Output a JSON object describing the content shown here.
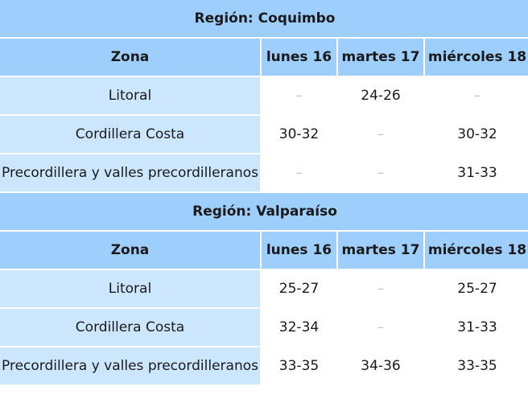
{
  "headers": {
    "zona": "Zona",
    "day1": "lunes 16",
    "day2": "martes 17",
    "day3": "miércoles 18"
  },
  "regions": [
    {
      "title": "Región: Coquimbo",
      "rows": [
        {
          "zona": "Litoral",
          "day1": "–",
          "day2": "24-26",
          "day3": "–"
        },
        {
          "zona": "Cordillera Costa",
          "day1": "30-32",
          "day2": "–",
          "day3": "30-32"
        },
        {
          "zona": "Precordillera y valles precordilleranos",
          "day1": "–",
          "day2": "–",
          "day3": "31-33"
        }
      ]
    },
    {
      "title": "Región: Valparaíso",
      "rows": [
        {
          "zona": "Litoral",
          "day1": "25-27",
          "day2": "–",
          "day3": "25-27"
        },
        {
          "zona": "Cordillera Costa",
          "day1": "32-34",
          "day2": "–",
          "day3": "31-33"
        },
        {
          "zona": "Precordillera y valles precordilleranos",
          "day1": "33-35",
          "day2": "34-36",
          "day3": "33-35"
        }
      ]
    }
  ]
}
